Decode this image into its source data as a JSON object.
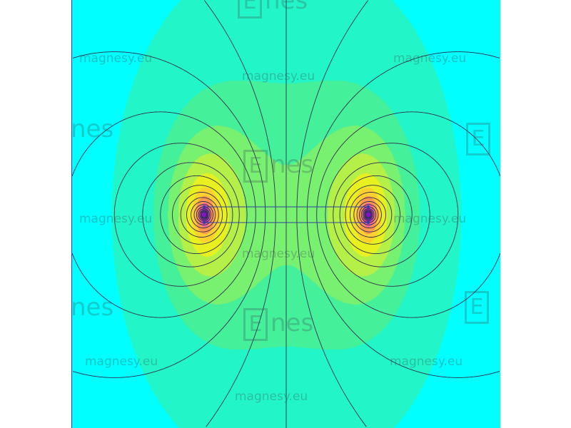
{
  "watermark": {
    "text": "magnesy.eu",
    "logo_text": "Enes",
    "logo_e": "E",
    "logo_rest": "nes"
  },
  "colors": {
    "bands": [
      "#00ffff",
      "#22f6c8",
      "#44f09a",
      "#78f070",
      "#b4f048",
      "#e8f020",
      "#ffd030",
      "#ff9850",
      "#f060a0",
      "#c020d0",
      "#a000e0"
    ],
    "field_lines": "#303050",
    "coil": "#3040a0"
  },
  "icons": [
    "coil-cross-section"
  ]
}
